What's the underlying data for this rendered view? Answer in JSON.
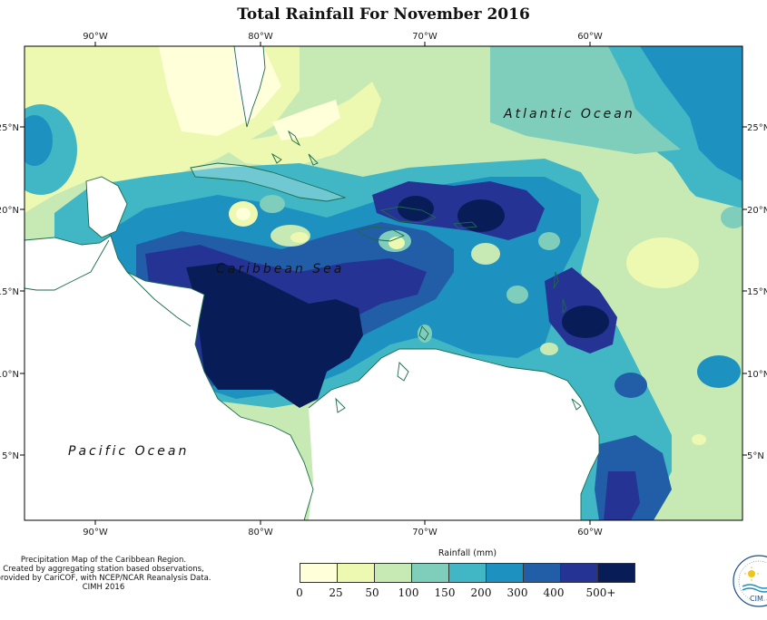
{
  "title": "Total Rainfall For November 2016",
  "map": {
    "lon_labels": [
      "90°W",
      "80°W",
      "70°W",
      "60°W"
    ],
    "lat_labels": [
      "25°N",
      "20°N",
      "15°N",
      "10°N",
      "5°N"
    ],
    "ocean_labels": {
      "atlantic": "Atlantic Ocean",
      "caribbean": "Caribbean Sea",
      "pacific": "Pacific Ocean"
    }
  },
  "legend": {
    "title": "Rainfall (mm)",
    "colors": [
      "#ffffd9",
      "#edf8b1",
      "#c7e9b4",
      "#7fcdbb",
      "#41b6c4",
      "#1d91c0",
      "#225ea8",
      "#253494",
      "#081d58"
    ],
    "labels": [
      "0",
      "25",
      "50",
      "100",
      "150",
      "200",
      "300",
      "400",
      "500+"
    ]
  },
  "credit": {
    "line1": "Precipitation Map of the Caribbean Region.",
    "line2": "Created by aggregating station based observations,",
    "line3": "provided by CariCOF, with NCEP/NCAR Reanalysis Data.",
    "line4": "CIMH 2016"
  },
  "logo": {
    "text": "CIM"
  }
}
